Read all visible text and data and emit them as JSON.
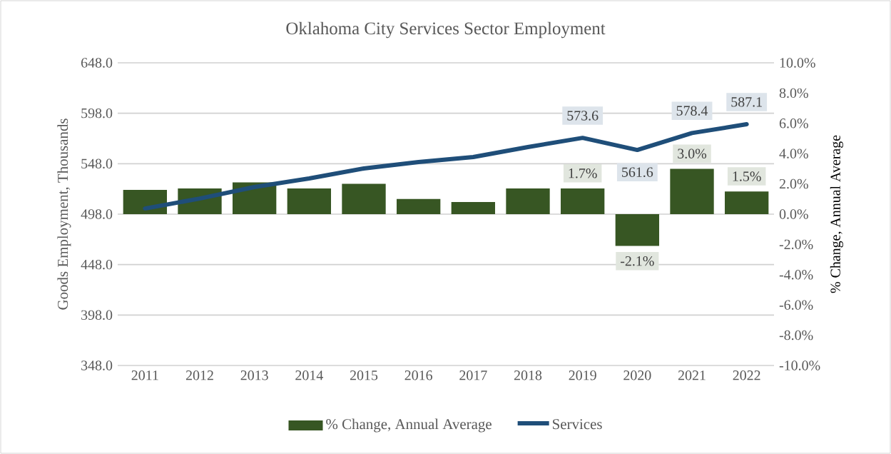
{
  "chart_data": {
    "type": "bar",
    "title": "Oklahoma City Services Sector Employment",
    "ylabel": "Goods Employment, Thousands",
    "y2label": "% Change, Annual Average",
    "categories": [
      "2011",
      "2012",
      "2013",
      "2014",
      "2015",
      "2016",
      "2017",
      "2018",
      "2019",
      "2020",
      "2021",
      "2022"
    ],
    "series": [
      {
        "name": "% Change, Annual Average",
        "axis": "y2",
        "color": "#375623",
        "values": [
          1.6,
          1.7,
          2.1,
          1.7,
          2.0,
          1.0,
          0.8,
          1.7,
          1.7,
          -2.1,
          3.0,
          1.5
        ],
        "value_labels": [
          null,
          null,
          null,
          null,
          null,
          null,
          null,
          null,
          "1.7%",
          "-2.1%",
          "3.0%",
          "1.5%"
        ]
      },
      {
        "name": "Services",
        "type": "line",
        "axis": "y",
        "color": "#1f4e79",
        "values": [
          503.6,
          513.5,
          524.9,
          533.4,
          543.3,
          549.6,
          554.6,
          564.5,
          573.6,
          561.6,
          578.4,
          587.1
        ],
        "value_labels": [
          null,
          null,
          null,
          null,
          null,
          null,
          null,
          null,
          "573.6",
          "561.6",
          "578.4",
          "587.1"
        ]
      }
    ],
    "ylim": [
      348,
      648
    ],
    "yticks": [
      {
        "value": 348,
        "label": "348.0"
      },
      {
        "value": 398,
        "label": "398.0"
      },
      {
        "value": 448,
        "label": "448.0"
      },
      {
        "value": 498,
        "label": "498.0"
      },
      {
        "value": 548,
        "label": "548.0"
      },
      {
        "value": 598,
        "label": "598.0"
      },
      {
        "value": 648,
        "label": "648.0"
      }
    ],
    "y2lim": [
      -10,
      10
    ],
    "y2ticks": [
      {
        "value": -10,
        "label": "-10.0%"
      },
      {
        "value": -8,
        "label": "-8.0%"
      },
      {
        "value": -6,
        "label": "-6.0%"
      },
      {
        "value": -4,
        "label": "-4.0%"
      },
      {
        "value": -2,
        "label": "-2.0%"
      },
      {
        "value": 0,
        "label": "0.0%"
      },
      {
        "value": 2,
        "label": "2.0%"
      },
      {
        "value": 4,
        "label": "4.0%"
      },
      {
        "value": 6,
        "label": "6.0%"
      },
      {
        "value": 8,
        "label": "8.0%"
      },
      {
        "value": 10,
        "label": "10.0%"
      }
    ],
    "grid": "y",
    "legend": "bottom"
  }
}
